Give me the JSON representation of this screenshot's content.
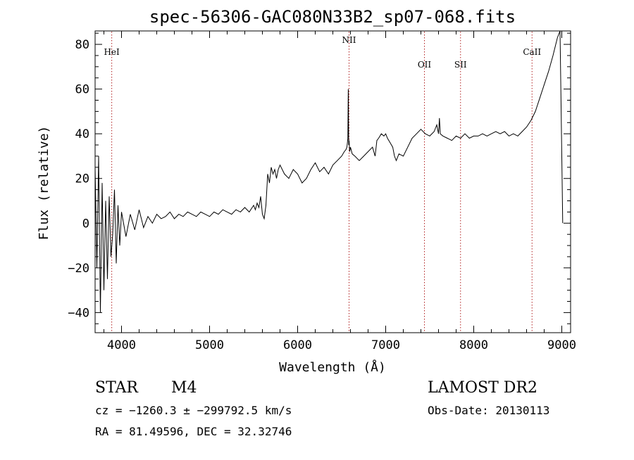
{
  "chart_data": {
    "type": "line",
    "title": "spec-56306-GAC080N33B2_sp07-068.fits",
    "xlabel": "Wavelength (Å)",
    "ylabel": "Flux (relative)",
    "xlim": [
      3700,
      9100
    ],
    "ylim": [
      -49,
      86
    ],
    "xticks": [
      4000,
      5000,
      6000,
      7000,
      8000,
      9000
    ],
    "yticks": [
      -40,
      -20,
      0,
      20,
      40,
      60,
      80
    ],
    "xtick_labels": [
      "4000",
      "5000",
      "6000",
      "7000",
      "8000",
      "9000"
    ],
    "ytick_labels": [
      "−40",
      "−20",
      "0",
      "20",
      "40",
      "60",
      "80"
    ],
    "grid": false,
    "spectral_lines": [
      {
        "label": "HeI",
        "wavelength": 3889
      },
      {
        "label": "NII",
        "wavelength": 6584
      },
      {
        "label": "OII",
        "wavelength": 7440
      },
      {
        "label": "SII",
        "wavelength": 7850
      },
      {
        "label": "CaII",
        "wavelength": 8662
      }
    ],
    "series": [
      {
        "x": [
          3700,
          3720,
          3740,
          3760,
          3780,
          3800,
          3820,
          3840,
          3860,
          3880,
          3900,
          3920,
          3940,
          3960,
          3980,
          4000,
          4050,
          4100,
          4150,
          4200,
          4250,
          4300,
          4350,
          4400,
          4450,
          4500,
          4550,
          4600,
          4650,
          4700,
          4750,
          4800,
          4850,
          4900,
          4950,
          5000,
          5050,
          5100,
          5150,
          5200,
          5250,
          5300,
          5350,
          5400,
          5450,
          5500,
          5520,
          5540,
          5560,
          5580,
          5600,
          5620,
          5640,
          5660,
          5680,
          5700,
          5720,
          5740,
          5760,
          5780,
          5800,
          5850,
          5900,
          5950,
          6000,
          6050,
          6100,
          6150,
          6200,
          6250,
          6300,
          6350,
          6400,
          6450,
          6500,
          6530,
          6550,
          6560,
          6570,
          6575,
          6580,
          6585,
          6590,
          6600,
          6620,
          6650,
          6700,
          6750,
          6800,
          6850,
          6880,
          6900,
          6920,
          6950,
          6980,
          7000,
          7020,
          7050,
          7080,
          7100,
          7120,
          7150,
          7200,
          7250,
          7300,
          7350,
          7400,
          7450,
          7500,
          7550,
          7580,
          7600,
          7610,
          7620,
          7650,
          7700,
          7750,
          7800,
          7850,
          7900,
          7950,
          8000,
          8050,
          8100,
          8150,
          8200,
          8250,
          8300,
          8350,
          8400,
          8450,
          8500,
          8550,
          8600,
          8650,
          8700,
          8750,
          8800,
          8850,
          8900,
          8950,
          8980,
          9000,
          9010
        ],
        "y": [
          25,
          -20,
          30,
          -40,
          18,
          -30,
          10,
          -25,
          12,
          -15,
          -5,
          15,
          -18,
          8,
          -10,
          5,
          -6,
          4,
          -3,
          6,
          -2,
          3,
          0,
          4,
          2,
          3,
          5,
          2,
          4,
          3,
          5,
          4,
          3,
          5,
          4,
          3,
          5,
          4,
          6,
          5,
          4,
          6,
          5,
          7,
          5,
          8,
          6,
          9,
          7,
          12,
          4,
          2,
          8,
          22,
          18,
          25,
          22,
          24,
          20,
          24,
          26,
          22,
          20,
          24,
          22,
          18,
          20,
          24,
          27,
          23,
          25,
          22,
          26,
          28,
          30,
          32,
          33,
          34,
          38,
          60,
          35,
          37,
          32,
          34,
          31,
          30,
          28,
          30,
          32,
          34,
          30,
          37,
          38,
          40,
          39,
          40,
          38,
          36,
          34,
          30,
          28,
          31,
          30,
          34,
          38,
          40,
          42,
          40,
          39,
          41,
          44,
          40,
          47,
          40,
          39,
          38,
          37,
          39,
          38,
          40,
          38,
          39,
          39,
          40,
          39,
          40,
          41,
          40,
          41,
          39,
          40,
          39,
          41,
          43,
          46,
          50,
          56,
          62,
          68,
          75,
          83,
          86,
          30,
          0
        ]
      }
    ]
  },
  "info": {
    "object_class": "STAR",
    "subclass": "M4",
    "survey": "LAMOST DR2",
    "redshift_line": "cz = −1260.3 ± −299792.5 km/s",
    "obs_date": "Obs-Date: 20130113",
    "coords": "RA =  81.49596, DEC =  32.32746"
  }
}
